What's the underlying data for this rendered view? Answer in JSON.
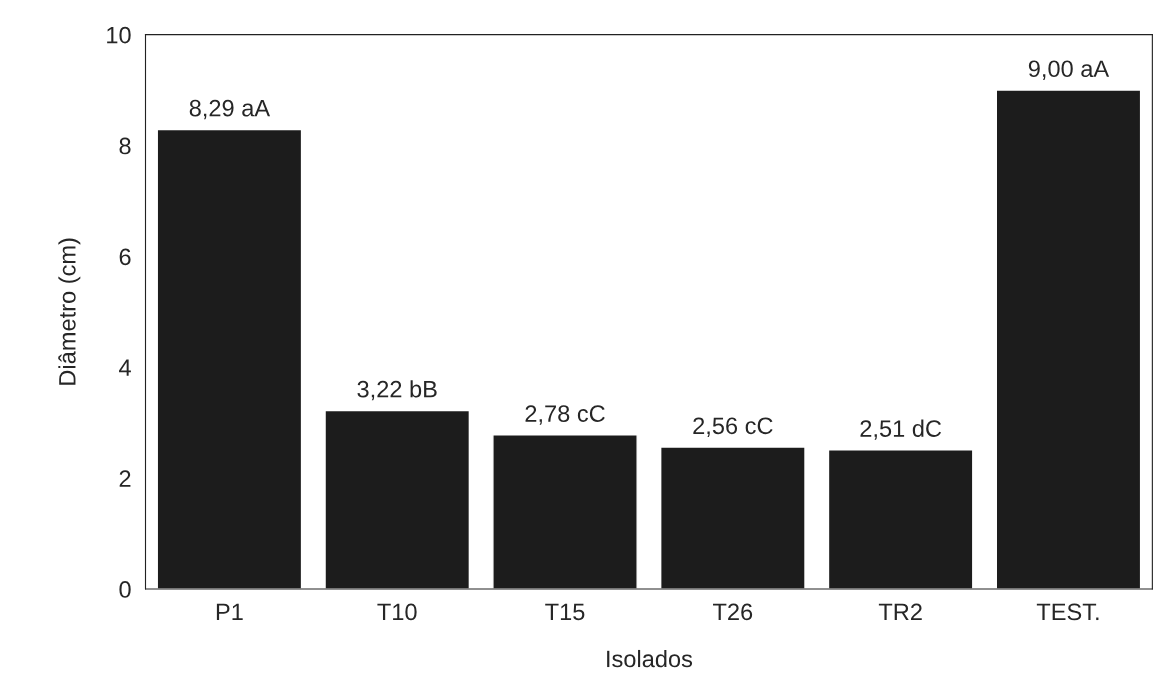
{
  "chart_data": {
    "type": "bar",
    "xlabel": "Isolados",
    "ylabel": "Diâmetro (cm)",
    "categories": [
      "P1",
      "T10",
      "T15",
      "T26",
      "TR2",
      "TEST."
    ],
    "values": [
      8.29,
      3.22,
      2.78,
      2.56,
      2.51,
      9.0
    ],
    "value_labels": [
      "8,29 aA",
      "3,22 bB",
      "2,78 cC",
      "2,56 cC",
      "2,51 dC",
      "9,00 aA"
    ],
    "color": "#1c1c1c",
    "ylim": [
      0,
      10
    ],
    "yticks": [
      0,
      2,
      4,
      6,
      8,
      10
    ]
  }
}
